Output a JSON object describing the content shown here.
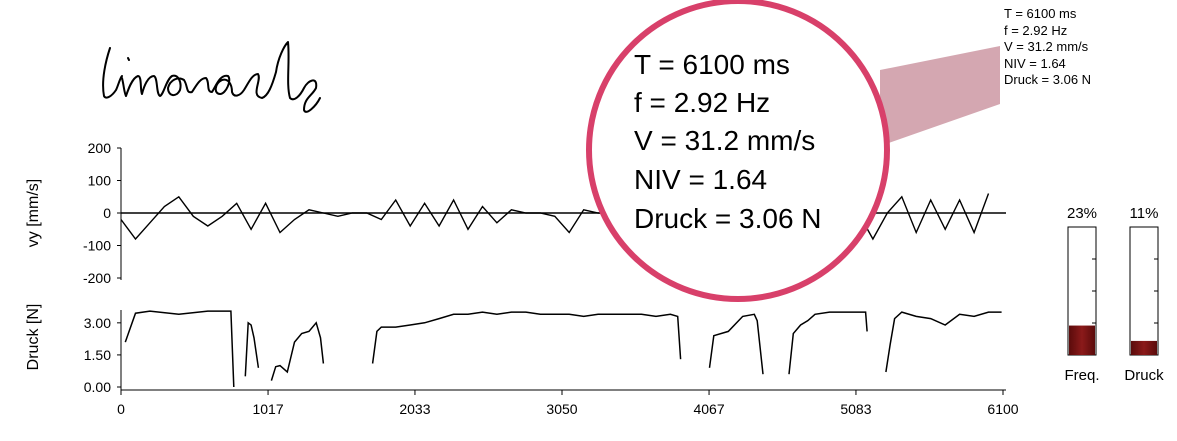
{
  "handwriting_word": "Limonade",
  "stats": {
    "T": "T = 6100 ms",
    "f": "f = 2.92 Hz",
    "V": "V = 31.2 mm/s",
    "NIV": "NIV = 1.64",
    "Druck": "Druck = 3.06 N"
  },
  "bars": [
    {
      "name": "Freq.",
      "label": "Freq.",
      "percent_text": "23%",
      "fraction": 0.23
    },
    {
      "name": "Druck",
      "label": "Druck",
      "percent_text": "11%",
      "fraction": 0.11
    }
  ],
  "colors": {
    "bar_fill": "#8b1a1a",
    "magnifier_ring": "#d8406a",
    "callout": "#c58a97",
    "trace": "#000000"
  },
  "chart_data": [
    {
      "type": "line",
      "ylabel": "vy [mm/s]",
      "ylim": [
        -200,
        200
      ],
      "yticks": [
        "200",
        "100",
        "0",
        "-100",
        "-200"
      ],
      "ytick_values": [
        200,
        100,
        0,
        -100,
        -200
      ],
      "xlim": [
        0,
        6100
      ],
      "x": [
        0,
        100,
        200,
        300,
        400,
        500,
        600,
        700,
        800,
        900,
        1000,
        1100,
        1200,
        1300,
        1400,
        1500,
        1600,
        1700,
        1800,
        1900,
        2000,
        2100,
        2200,
        2300,
        2400,
        2500,
        2600,
        2700,
        2800,
        2900,
        3000,
        3100,
        3200,
        3300,
        3400,
        3500,
        3600,
        3700,
        3800,
        3900,
        4000,
        4100,
        4200,
        4300,
        4400,
        4500,
        4600,
        4700,
        4800,
        4900,
        5000,
        5100,
        5200,
        5300,
        5400,
        5500,
        5600,
        5700,
        5800,
        5900,
        6000
      ],
      "y": [
        -20,
        -80,
        -30,
        20,
        50,
        -10,
        -40,
        -10,
        30,
        -50,
        30,
        -60,
        -20,
        10,
        0,
        -10,
        0,
        0,
        -20,
        40,
        -40,
        30,
        -40,
        40,
        -50,
        20,
        -30,
        10,
        0,
        0,
        -10,
        -60,
        10,
        0,
        0,
        0,
        0,
        0,
        0,
        0,
        0,
        0,
        0,
        0,
        0,
        0,
        0,
        0,
        0,
        0,
        0,
        0,
        -80,
        0,
        50,
        -60,
        40,
        -50,
        40,
        -60,
        60
      ]
    },
    {
      "type": "line",
      "ylabel": "Druck [N]",
      "ylim": [
        0,
        3.6
      ],
      "yticks": [
        "3.00",
        "1.50",
        "0.00"
      ],
      "ytick_values": [
        3.0,
        1.5,
        0.0
      ],
      "xlim": [
        0,
        6100
      ],
      "xticks": [
        "0",
        "1017",
        "2033",
        "3050",
        "4067",
        "5083",
        "6100"
      ],
      "xtick_values": [
        0,
        1017,
        2033,
        3050,
        4067,
        5083,
        6100
      ],
      "segments": [
        {
          "x": [
            30,
            100,
            200,
            400,
            600,
            700,
            760,
            780
          ],
          "y": [
            2.1,
            3.45,
            3.55,
            3.4,
            3.55,
            3.55,
            3.55,
            0.0
          ]
        },
        {
          "x": [
            860,
            880,
            900,
            920,
            950
          ],
          "y": [
            0.5,
            3.0,
            2.9,
            2.3,
            0.9
          ]
        },
        {
          "x": [
            1040,
            1070,
            1100,
            1150,
            1200,
            1250,
            1300,
            1350,
            1380,
            1400
          ],
          "y": [
            0.3,
            0.95,
            1.0,
            0.7,
            2.1,
            2.5,
            2.6,
            3.0,
            2.3,
            1.1
          ]
        },
        {
          "x": [
            1740,
            1770,
            1800,
            1900,
            2000,
            2100,
            2200,
            2300,
            2400,
            2500,
            2600,
            2700,
            2800,
            2900,
            3000,
            3100,
            3200,
            3300,
            3400,
            3500,
            3600,
            3700,
            3800,
            3850,
            3870
          ],
          "y": [
            1.1,
            2.6,
            2.8,
            2.8,
            2.9,
            3.0,
            3.2,
            3.4,
            3.4,
            3.5,
            3.4,
            3.5,
            3.5,
            3.4,
            3.4,
            3.4,
            3.3,
            3.4,
            3.4,
            3.4,
            3.4,
            3.3,
            3.4,
            3.3,
            1.3
          ]
        },
        {
          "x": [
            4070,
            4100,
            4200,
            4300,
            4380,
            4400,
            4440
          ],
          "y": [
            0.9,
            2.4,
            2.6,
            3.3,
            3.4,
            3.1,
            0.6
          ]
        },
        {
          "x": [
            4620,
            4650,
            4700,
            4750,
            4800,
            4900,
            5000,
            5100,
            5150,
            5160
          ],
          "y": [
            0.6,
            2.5,
            2.9,
            3.1,
            3.4,
            3.5,
            3.5,
            3.5,
            3.5,
            2.6
          ]
        },
        {
          "x": [
            5290,
            5320,
            5350,
            5400,
            5500,
            5600,
            5700,
            5800,
            5900,
            6000,
            6090
          ],
          "y": [
            0.7,
            2.0,
            3.2,
            3.5,
            3.3,
            3.2,
            2.9,
            3.4,
            3.3,
            3.5,
            3.5
          ]
        }
      ]
    }
  ]
}
